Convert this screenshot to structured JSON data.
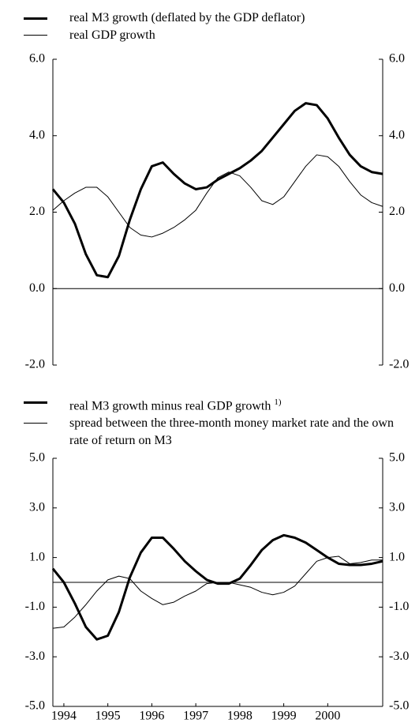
{
  "chart_data": [
    {
      "type": "line",
      "x": [
        1994.25,
        1994.5,
        1994.75,
        1995,
        1995.25,
        1995.5,
        1995.75,
        1996,
        1996.25,
        1996.5,
        1996.75,
        1997,
        1997.25,
        1997.5,
        1997.75,
        1998,
        1998.25,
        1998.5,
        1998.75,
        1999,
        1999.25,
        1999.5,
        1999.75,
        2000,
        2000.25,
        2000.5,
        2000.75,
        2001,
        2001.25,
        2001.5,
        2001.75
      ],
      "xlim": [
        1994.25,
        2001.75
      ],
      "ylim": [
        -2,
        6
      ],
      "yticks": [
        {
          "value": 6,
          "label": "6.0"
        },
        {
          "value": 4,
          "label": "4.0"
        },
        {
          "value": 2,
          "label": "2.0"
        },
        {
          "value": 0,
          "label": "0.0"
        },
        {
          "value": -2,
          "label": "-2.0"
        }
      ],
      "series": [
        {
          "name": "real M3 growth (deflated by the GDP deflator)",
          "color": "#000000",
          "width": 3,
          "values": [
            2.6,
            2.25,
            1.7,
            0.9,
            0.35,
            0.3,
            0.85,
            1.8,
            2.6,
            3.2,
            3.3,
            3.0,
            2.75,
            2.6,
            2.65,
            2.85,
            3.0,
            3.15,
            3.35,
            3.6,
            3.95,
            4.3,
            4.65,
            4.85,
            4.8,
            4.45,
            3.95,
            3.5,
            3.2,
            3.05,
            3.0
          ]
        },
        {
          "name": "real GDP growth",
          "color": "#000000",
          "width": 1,
          "values": [
            2.05,
            2.3,
            2.5,
            2.65,
            2.65,
            2.4,
            2.0,
            1.6,
            1.4,
            1.35,
            1.45,
            1.6,
            1.8,
            2.05,
            2.5,
            2.9,
            3.05,
            2.95,
            2.65,
            2.3,
            2.2,
            2.4,
            2.8,
            3.2,
            3.5,
            3.45,
            3.2,
            2.8,
            2.45,
            2.25,
            2.15
          ]
        }
      ]
    },
    {
      "type": "line",
      "x": [
        1994.25,
        1994.5,
        1994.75,
        1995,
        1995.25,
        1995.5,
        1995.75,
        1996,
        1996.25,
        1996.5,
        1996.75,
        1997,
        1997.25,
        1997.5,
        1997.75,
        1998,
        1998.25,
        1998.5,
        1998.75,
        1999,
        1999.25,
        1999.5,
        1999.75,
        2000,
        2000.25,
        2000.5,
        2000.75,
        2001,
        2001.25,
        2001.5,
        2001.75
      ],
      "xlim": [
        1994.25,
        2001.75
      ],
      "xticks": [
        {
          "value": 1994.5,
          "label": "1994"
        },
        {
          "value": 1995.5,
          "label": "1995"
        },
        {
          "value": 1996.5,
          "label": "1996"
        },
        {
          "value": 1997.5,
          "label": "1997"
        },
        {
          "value": 1998.5,
          "label": "1998"
        },
        {
          "value": 1999.5,
          "label": "1999"
        },
        {
          "value": 2000.5,
          "label": "2000"
        }
      ],
      "ylim": [
        -5,
        5
      ],
      "yticks": [
        {
          "value": 5,
          "label": "5.0"
        },
        {
          "value": 3,
          "label": "3.0"
        },
        {
          "value": 1,
          "label": "1.0"
        },
        {
          "value": -1,
          "label": "-1.0"
        },
        {
          "value": -3,
          "label": "-3.0"
        },
        {
          "value": -5,
          "label": "-5.0"
        }
      ],
      "series": [
        {
          "name": "real M3 growth minus real GDP growth",
          "note_ref": "1)",
          "color": "#000000",
          "width": 3,
          "values": [
            0.55,
            0.0,
            -0.85,
            -1.8,
            -2.3,
            -2.15,
            -1.2,
            0.2,
            1.2,
            1.8,
            1.8,
            1.35,
            0.85,
            0.45,
            0.1,
            -0.05,
            -0.05,
            0.15,
            0.7,
            1.3,
            1.7,
            1.9,
            1.8,
            1.6,
            1.3,
            1.0,
            0.75,
            0.7,
            0.7,
            0.75,
            0.85
          ]
        },
        {
          "name": "spread between the three-month money market rate and the own rate of return on M3",
          "color": "#000000",
          "width": 1,
          "values": [
            -1.85,
            -1.8,
            -1.4,
            -0.9,
            -0.35,
            0.1,
            0.25,
            0.15,
            -0.35,
            -0.65,
            -0.9,
            -0.8,
            -0.55,
            -0.35,
            -0.05,
            0.0,
            0.0,
            -0.1,
            -0.2,
            -0.4,
            -0.5,
            -0.4,
            -0.15,
            0.35,
            0.85,
            1.0,
            1.05,
            0.75,
            0.8,
            0.9,
            0.9
          ]
        }
      ]
    }
  ]
}
